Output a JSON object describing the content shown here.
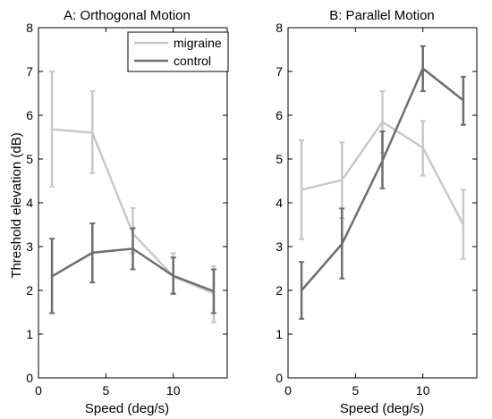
{
  "ylabel_shared": "Threshold elevation (dB)",
  "chart_data": [
    {
      "type": "line",
      "title": "A: Orthogonal Motion",
      "xlabel": "Speed (deg/s)",
      "ylabel": "Threshold elevation (dB)",
      "xlim": [
        0,
        14
      ],
      "ylim": [
        0,
        8
      ],
      "xticks": [
        0,
        5,
        10
      ],
      "yticks": [
        0,
        1,
        2,
        3,
        4,
        5,
        6,
        7,
        8
      ],
      "x": [
        1,
        4,
        7,
        10,
        13
      ],
      "legend": "top-right",
      "series": [
        {
          "name": "migraine",
          "color": "#c8c8c8",
          "values": [
            5.68,
            5.6,
            3.3,
            2.32,
            1.93
          ],
          "err_low": [
            4.37,
            4.68,
            2.85,
            1.93,
            1.27
          ],
          "err_high": [
            7.0,
            6.55,
            3.88,
            2.85,
            2.55
          ]
        },
        {
          "name": "control",
          "color": "#6e6e6e",
          "values": [
            2.32,
            2.86,
            2.95,
            2.33,
            1.98
          ],
          "err_low": [
            1.48,
            2.18,
            2.48,
            1.92,
            1.48
          ],
          "err_high": [
            3.18,
            3.53,
            3.42,
            2.75,
            2.48
          ]
        }
      ]
    },
    {
      "type": "line",
      "title": "B: Parallel Motion",
      "xlabel": "Speed (deg/s)",
      "ylabel": "",
      "xlim": [
        0,
        14
      ],
      "ylim": [
        0,
        8
      ],
      "xticks": [
        0,
        5,
        10
      ],
      "yticks": [
        0,
        1,
        2,
        3,
        4,
        5,
        6,
        7,
        8
      ],
      "x": [
        1,
        4,
        7,
        10,
        13
      ],
      "series": [
        {
          "name": "migraine",
          "color": "#c8c8c8",
          "values": [
            4.3,
            4.52,
            5.85,
            5.26,
            3.5
          ],
          "err_low": [
            3.17,
            3.65,
            5.15,
            4.62,
            2.72
          ],
          "err_high": [
            5.43,
            5.38,
            6.55,
            5.87,
            4.3
          ]
        },
        {
          "name": "control",
          "color": "#6e6e6e",
          "values": [
            2.0,
            3.06,
            4.96,
            7.07,
            6.34
          ],
          "err_low": [
            1.35,
            2.27,
            4.33,
            6.55,
            5.78
          ],
          "err_high": [
            2.65,
            3.87,
            5.63,
            7.58,
            6.88
          ]
        }
      ]
    }
  ]
}
